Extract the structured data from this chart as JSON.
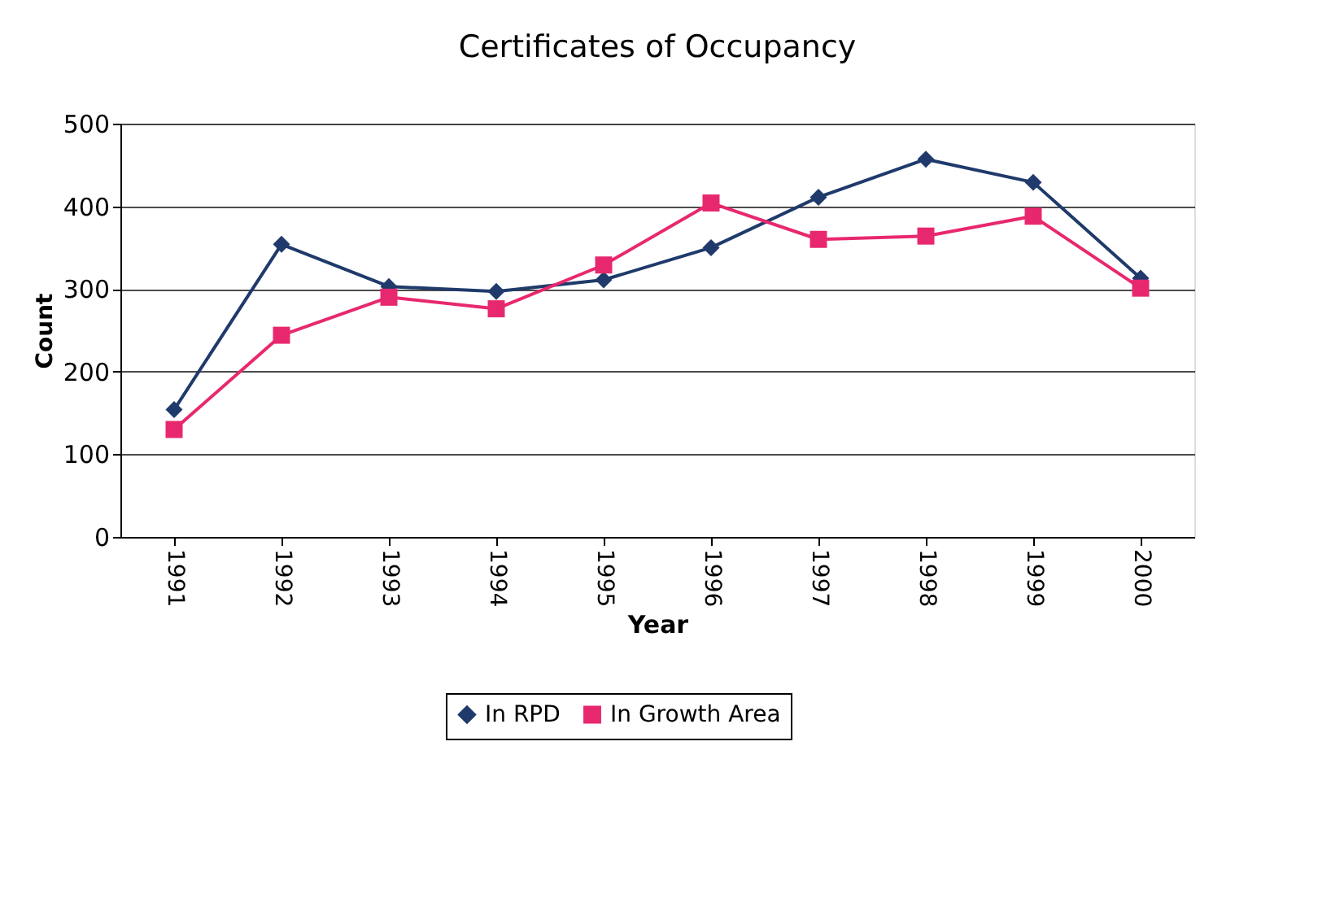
{
  "chart_data": {
    "type": "line",
    "title": "Certificates of Occupancy",
    "xlabel": "Year",
    "ylabel": "Count",
    "categories": [
      "1991",
      "1992",
      "1993",
      "1994",
      "1995",
      "1996",
      "1997",
      "1998",
      "1999",
      "2000"
    ],
    "series": [
      {
        "name": "In RPD",
        "color": "#1f3a6b",
        "marker": "diamond",
        "values": [
          154,
          354,
          303,
          297,
          311,
          350,
          411,
          457,
          429,
          313
        ]
      },
      {
        "name": "In Growth Area",
        "color": "#e8286e",
        "marker": "square",
        "values": [
          130,
          244,
          290,
          276,
          329,
          404,
          360,
          364,
          388,
          301
        ]
      }
    ],
    "ylim": [
      0,
      500
    ],
    "yticks": [
      0,
      100,
      200,
      300,
      400,
      500
    ],
    "grid": "y",
    "legend": "bottom",
    "line_style": "solid"
  }
}
